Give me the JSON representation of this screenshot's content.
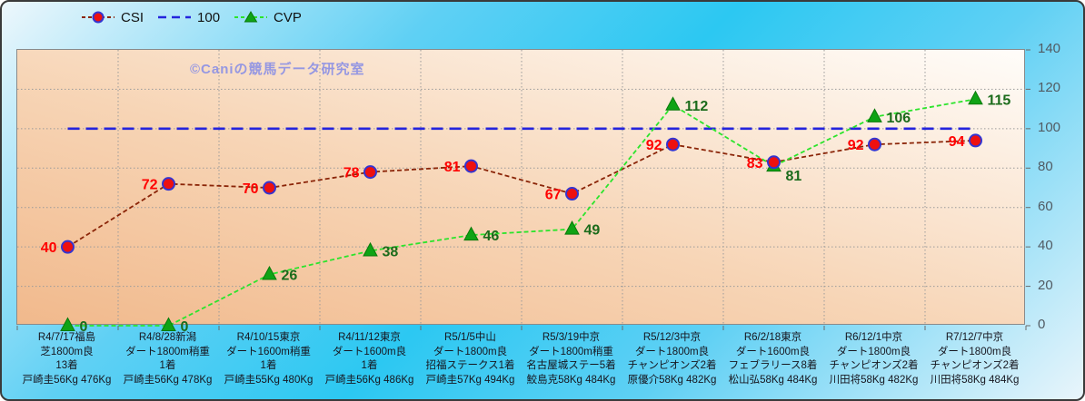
{
  "watermark": "©Caniの競馬データ研究室",
  "legend": {
    "items": [
      {
        "label": "CSI"
      },
      {
        "label": "100"
      },
      {
        "label": "CVP"
      }
    ]
  },
  "colors": {
    "frame_gradient_light": "#edf7fc",
    "frame_gradient_cyan": "#2cc8f2",
    "plot_gradient_dark": "#f1b98c",
    "plot_gradient_light": "#fffdfa",
    "grid": "#9a9a9a",
    "csi_line": "#8b2508",
    "csi_marker_fill": "#ee1010",
    "csi_marker_stroke": "#3434d0",
    "csi_label": "#ff0000",
    "hundred_line": "#2424dd",
    "cvp_line": "#2ce42c",
    "cvp_marker_fill": "#0fa315",
    "cvp_label": "#1b6b1b",
    "axis_tick": "#6a6a6a",
    "y_tick_label": "#515b63",
    "x_label": "#16161f",
    "watermark": "#9597e2"
  },
  "chart_data": {
    "type": "line",
    "title": "",
    "xlabel": "",
    "ylabel": "",
    "ylim": [
      0,
      140
    ],
    "yticks": [
      0,
      20,
      40,
      60,
      80,
      100,
      120,
      140
    ],
    "grid": true,
    "legend_position": "top-left",
    "x_categories": [
      [
        "R4/7/17福島",
        "芝1800m良",
        "13着",
        "戸崎圭56Kg 476Kg"
      ],
      [
        "R4/8/28新潟",
        "ダート1800m稍重",
        "1着",
        "戸崎圭56Kg 478Kg"
      ],
      [
        "R4/10/15東京",
        "ダート1600m稍重",
        "1着",
        "戸崎圭55Kg 480Kg"
      ],
      [
        "R4/11/12東京",
        "ダート1600m良",
        "1着",
        "戸崎圭56Kg 486Kg"
      ],
      [
        "R5/1/5中山",
        "ダート1800m良",
        "招福ステークス1着",
        "戸崎圭57Kg 494Kg"
      ],
      [
        "R5/3/19中京",
        "ダート1800m稍重",
        "名古屋城ステー5着",
        "鮫島克58Kg 484Kg"
      ],
      [
        "R5/12/3中京",
        "ダート1800m良",
        "チャンピオンズ2着",
        "原優介58Kg 482Kg"
      ],
      [
        "R6/2/18東京",
        "ダート1600m良",
        "フェブラリース8着",
        "松山弘58Kg 484Kg"
      ],
      [
        "R6/12/1中京",
        "ダート1800m良",
        "チャンピオンズ2着",
        "川田将58Kg 482Kg"
      ],
      [
        "R7/12/7中京",
        "ダート1800m良",
        "チャンピオンズ2着",
        "川田将58Kg 484Kg"
      ]
    ],
    "series": [
      {
        "name": "CSI",
        "values": [
          40,
          72,
          70,
          78,
          81,
          67,
          92,
          83,
          92,
          94
        ],
        "line_color": "#8b2508",
        "line_dash": "5 3",
        "line_width": 1.8,
        "marker": "circle",
        "marker_fill": "#ee1010",
        "marker_stroke": "#3434d0",
        "show_labels": true,
        "label_color": "#ff0000",
        "label_side": "left"
      },
      {
        "name": "100",
        "values": [
          100,
          100,
          100,
          100,
          100,
          100,
          100,
          100,
          100,
          100
        ],
        "line_color": "#2424dd",
        "line_dash": "13 7",
        "line_width": 2.6,
        "marker": "none",
        "show_labels": false
      },
      {
        "name": "CVP",
        "values": [
          0,
          0,
          26,
          38,
          46,
          49,
          112,
          81,
          106,
          115
        ],
        "line_color": "#2ce42c",
        "line_dash": "5 3",
        "line_width": 1.8,
        "marker": "triangle",
        "marker_fill": "#0fa315",
        "marker_stroke": "#0a7a0a",
        "show_labels": true,
        "label_color": "#1b6b1b",
        "label_side": "right",
        "label_dy": [
          6,
          6,
          6,
          6,
          6,
          6,
          6,
          16,
          6,
          6
        ]
      }
    ]
  }
}
